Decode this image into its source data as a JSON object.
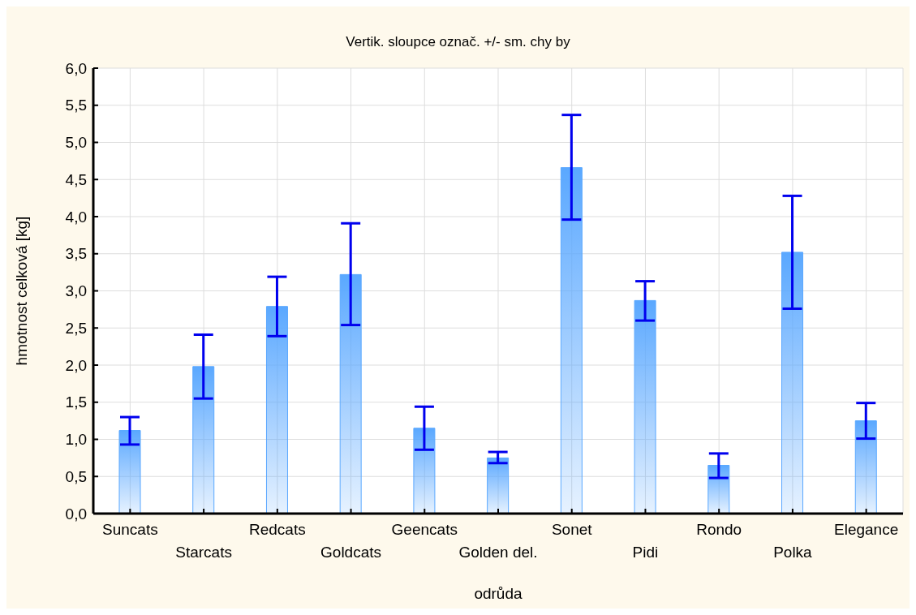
{
  "chart_data": {
    "type": "bar",
    "title": "Vertik. sloupce označ. +/- sm. chy by",
    "xlabel": "odrůda",
    "ylabel": "hmotnost celková [kg]",
    "categories": [
      "Suncats",
      "Starcats",
      "Redcats",
      "Goldcats",
      "Geencats",
      "Golden del.",
      "Sonet",
      "Pidi",
      "Rondo",
      "Polka",
      "Elegance"
    ],
    "values": [
      1.12,
      1.98,
      2.79,
      3.22,
      1.15,
      0.75,
      4.66,
      2.87,
      0.65,
      3.52,
      1.25
    ],
    "errors": [
      [
        0.93,
        1.3
      ],
      [
        1.55,
        2.41
      ],
      [
        2.39,
        3.19
      ],
      [
        2.54,
        3.91
      ],
      [
        0.86,
        1.44
      ],
      [
        0.68,
        0.83
      ],
      [
        3.96,
        5.37
      ],
      [
        2.6,
        3.13
      ],
      [
        0.48,
        0.81
      ],
      [
        2.76,
        4.28
      ],
      [
        1.01,
        1.49
      ]
    ],
    "color": "#5aa8ff",
    "ylim": [
      0,
      6
    ],
    "yticks": [
      {
        "value": 0,
        "label": "0,0"
      },
      {
        "value": 0.5,
        "label": "0,5"
      },
      {
        "value": 1,
        "label": "1,0"
      },
      {
        "value": 1.5,
        "label": "1,5"
      },
      {
        "value": 2,
        "label": "2,0"
      },
      {
        "value": 2.5,
        "label": "2,5"
      },
      {
        "value": 3,
        "label": "3,0"
      },
      {
        "value": 3.5,
        "label": "3,5"
      },
      {
        "value": 4,
        "label": "4,0"
      },
      {
        "value": 4.5,
        "label": "4,5"
      },
      {
        "value": 5,
        "label": "5,0"
      },
      {
        "value": 5.5,
        "label": "5,5"
      },
      {
        "value": 6,
        "label": "6,0"
      }
    ],
    "grid": true
  }
}
